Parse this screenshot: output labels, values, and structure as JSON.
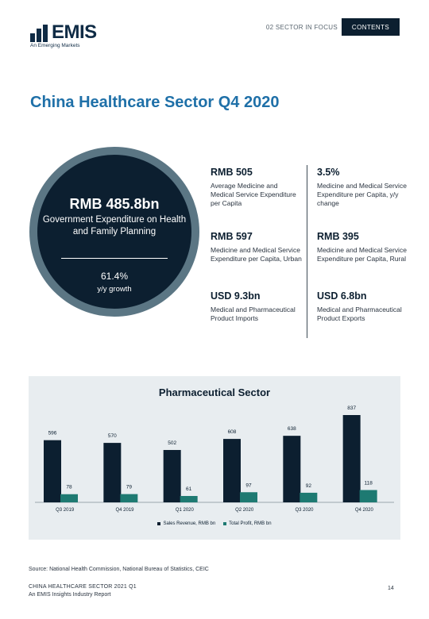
{
  "header": {
    "logo_text": "EMIS",
    "logo_tagline": "An Emerging Markets",
    "section_label": "02 SECTOR IN FOCUS",
    "contents_label": "CONTENTS"
  },
  "page_title": "China Healthcare Sector Q4 2020",
  "circle": {
    "value": "RMB 485.8bn",
    "label": "Government Expenditure on Health and Family Planning",
    "growth_value": "61.4%",
    "growth_label": "y/y growth"
  },
  "stats": [
    {
      "value": "RMB 505",
      "description": "Average Medicine and Medical Service Expenditure per Capita"
    },
    {
      "value": "3.5%",
      "description": "Medicine and Medical Service Expenditure per Capita, y/y change"
    },
    {
      "value": "RMB 597",
      "description": "Medicine and Medical Service Expenditure per Capita, Urban"
    },
    {
      "value": "RMB 395",
      "description": "Medicine and Medical Service Expenditure per Capita, Rural"
    },
    {
      "value": "USD 9.3bn",
      "description": "Medical and Pharmaceutical Product Imports"
    },
    {
      "value": "USD 6.8bn",
      "description": "Medical and Pharmaceutical Product Exports"
    }
  ],
  "chart_data": {
    "type": "bar",
    "title": "Pharmaceutical Sector",
    "categories": [
      "Q3 2019",
      "Q4 2019",
      "Q1 2020",
      "Q2 2020",
      "Q3 2020",
      "Q4 2020"
    ],
    "series": [
      {
        "name": "Sales Revenue, RMB bn",
        "values": [
          596,
          570,
          502,
          608,
          638,
          837
        ],
        "color": "#0c1f30"
      },
      {
        "name": "Total Profit, RMB bn",
        "values": [
          78,
          79,
          61,
          97,
          92,
          118
        ],
        "color": "#1e7a72"
      }
    ],
    "ylim": [
      0,
      837
    ],
    "legend_position": "bottom",
    "grid": false
  },
  "source": "Source: National Health Commission, National Bureau of Statistics, CEIC",
  "footer": {
    "line1": "CHINA HEALTHCARE SECTOR 2021 Q1",
    "line2": "An EMIS Insights Industry Report",
    "page_number": "14"
  }
}
